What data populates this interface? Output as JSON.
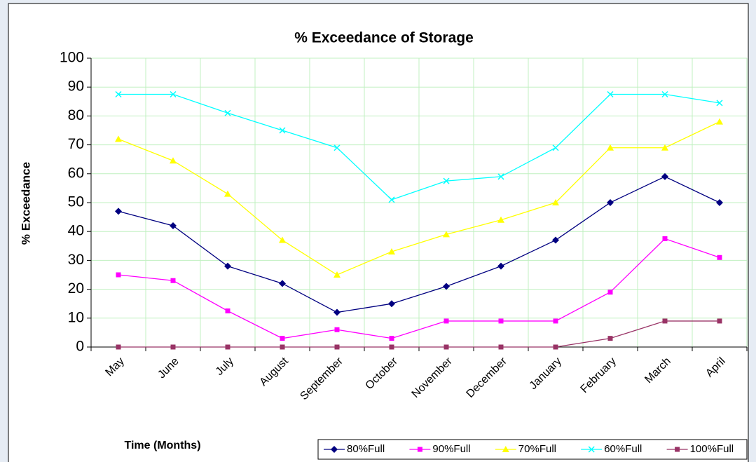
{
  "chart_data": {
    "type": "line",
    "title": "% Exceedance of Storage",
    "x_label": "Time (Months)",
    "y_label": "% Exceedance",
    "categories": [
      "May",
      "June",
      "July",
      "August",
      "September",
      "October",
      "November",
      "December",
      "January",
      "February",
      "March",
      "April"
    ],
    "series": [
      {
        "name": "80%Full",
        "color": "#000080",
        "marker": "diamond",
        "values": [
          47,
          42,
          28,
          22,
          12,
          15,
          21,
          28,
          37,
          50,
          59,
          50
        ]
      },
      {
        "name": "90%Full",
        "color": "#ff00ff",
        "marker": "square",
        "values": [
          25,
          23,
          12.5,
          3,
          6,
          3,
          9,
          9,
          9,
          19,
          37.5,
          31
        ]
      },
      {
        "name": "70%Full",
        "color": "#ffff00",
        "marker": "triangle",
        "values": [
          72,
          64.5,
          53,
          37,
          25,
          33,
          39,
          44,
          50,
          69,
          69,
          78
        ]
      },
      {
        "name": "60%Full",
        "color": "#00ffff",
        "marker": "x",
        "values": [
          87.5,
          87.5,
          81,
          75,
          69,
          51,
          57.5,
          59,
          69,
          87.5,
          87.5,
          84.5
        ]
      },
      {
        "name": "100%Full",
        "color": "#993366",
        "marker": "square",
        "values": [
          0,
          0,
          0,
          0,
          0,
          0,
          0,
          0,
          0,
          3,
          9,
          9
        ]
      }
    ],
    "ylim": [
      0,
      100
    ],
    "yticks": [
      0,
      10,
      20,
      30,
      40,
      50,
      60,
      70,
      80,
      90,
      100
    ],
    "grid": true,
    "grid_color": "#c0f0c0",
    "legend": "bottom-right"
  }
}
